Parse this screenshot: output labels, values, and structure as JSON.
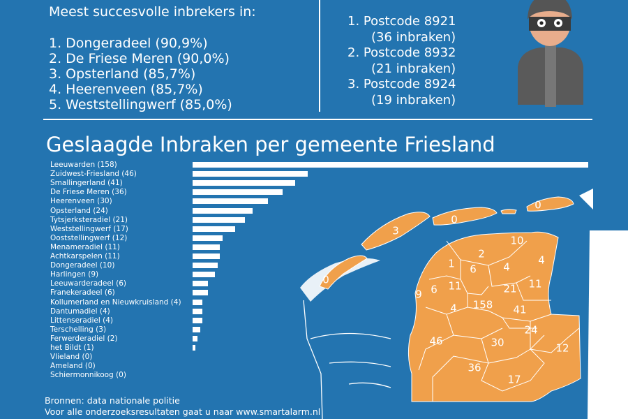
{
  "top_heading": "Meest succesvolle inbrekers in:",
  "top_list": [
    "1. Dongeradeel (90,9%)",
    "2. De Friese Meren (90,0%)",
    "3. Opsterland (85,7%)",
    "4. Heerenveen (85,7%)",
    "5. Weststellingwerf (85,0%)"
  ],
  "postcodes": [
    "1. Postcode 8921",
    "(36 inbraken)",
    "2. Postcode 8932",
    "(21 inbraken)",
    "3. Postcode 8924",
    "(19 inbraken)"
  ],
  "chart_data": {
    "type": "bar",
    "orientation": "horizontal",
    "title": "Geslaagde Inbraken per gemeente Friesland",
    "tick_labels": [
      "Leeuwarden (158)",
      "Zuidwest-Friesland (46)",
      "Smallingerland (41)",
      "De Friese Meren (36)",
      "Heerenveen (30)",
      "Opsterland (24)",
      "Tytsjerksteradiel (21)",
      "Weststellingwerf (17)",
      "Ooststellingwerf (12)",
      "Menameradiel (11)",
      "Achtkarspelen (11)",
      "Dongeradeel (10)",
      "Harlingen (9)",
      "Leeuwarderadeel (6)",
      "Franekeradeel (6)",
      "Kollumerland en Nieuwkruisland (4)",
      "Dantumadiel (4)",
      "Littenseradiel (4)",
      "Terschelling (3)",
      "Ferwerderadiel (2)",
      "het Bildt (1)",
      "Vlieland (0)",
      "Ameland (0)",
      "Schiermonnikoog (0)"
    ],
    "categories": [
      "Leeuwarden",
      "Zuidwest-Friesland",
      "Smallingerland",
      "De Friese Meren",
      "Heerenveen",
      "Opsterland",
      "Tytsjerksteradiel",
      "Weststellingwerf",
      "Ooststellingwerf",
      "Menameradiel",
      "Achtkarspelen",
      "Dongeradeel",
      "Harlingen",
      "Leeuwarderadeel",
      "Franekeradeel",
      "Kollumerland en Nieuwkruisland",
      "Dantumadiel",
      "Littenseradiel",
      "Terschelling",
      "Ferwerderadiel",
      "het Bildt",
      "Vlieland",
      "Ameland",
      "Schiermonnikoog"
    ],
    "values": [
      158,
      46,
      41,
      36,
      30,
      24,
      21,
      17,
      12,
      11,
      11,
      10,
      9,
      6,
      6,
      4,
      4,
      4,
      3,
      2,
      1,
      0,
      0,
      0
    ],
    "map_values": [
      "10",
      "2",
      "4",
      "4",
      "1",
      "6",
      "11",
      "11",
      "6",
      "9",
      "21",
      "158",
      "4",
      "41",
      "24",
      "46",
      "30",
      "12",
      "36",
      "17",
      "3",
      "0",
      "0",
      "0"
    ]
  },
  "sources_line1": "Bronnen: data nationale politie",
  "sources_line2": "Voor alle onderzoeksresultaten gaat u naar www.smartalarm.nl",
  "colors": {
    "background": "#2374b0",
    "map": "#f0a04b",
    "text": "#ffffff"
  },
  "icons": {
    "burglar": "burglar-icon"
  }
}
